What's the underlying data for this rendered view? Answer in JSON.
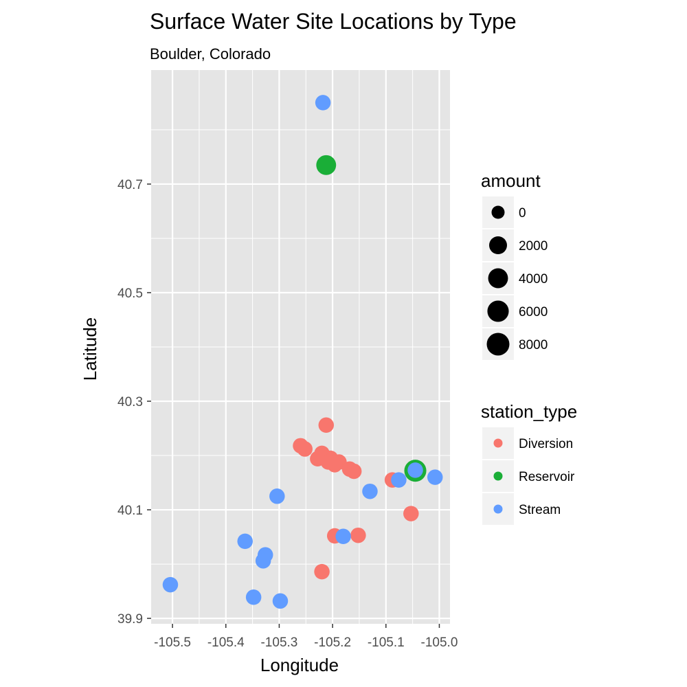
{
  "chart_data": {
    "type": "scatter",
    "title": "Surface Water Site Locations by Type",
    "subtitle": "Boulder, Colorado",
    "xlabel": "Longitude",
    "ylabel": "Latitude",
    "xlim": [
      -105.54,
      -104.98
    ],
    "ylim": [
      39.89,
      40.91
    ],
    "x_ticks": [
      -105.5,
      -105.4,
      -105.3,
      -105.2,
      -105.1,
      -105.0
    ],
    "x_tick_labels": [
      "-105.5",
      "-105.4",
      "-105.3",
      "-105.2",
      "-105.1",
      "-105.0"
    ],
    "y_ticks": [
      39.9,
      40.1,
      40.3,
      40.5,
      40.7
    ],
    "y_tick_labels": [
      "39.9",
      "40.1",
      "40.3",
      "40.5",
      "40.7"
    ],
    "grid": true,
    "colors": {
      "panel_bg": "#e5e5e5",
      "grid": "#ffffff",
      "legend_key_bg": "#f2f2f2",
      "Diversion": "#f8766d",
      "Reservoir": "#1aae37",
      "Stream": "#619cff"
    },
    "legend_amount": {
      "title": "amount",
      "placement": "right",
      "entries": [
        {
          "label": "0",
          "value": 0
        },
        {
          "label": "2000",
          "value": 2000
        },
        {
          "label": "4000",
          "value": 4000
        },
        {
          "label": "6000",
          "value": 6000
        },
        {
          "label": "8000",
          "value": 8000
        }
      ]
    },
    "legend_type": {
      "title": "station_type",
      "placement": "right",
      "entries": [
        "Diversion",
        "Reservoir",
        "Stream"
      ]
    },
    "series": [
      {
        "name": "Diversion",
        "points": [
          {
            "x": -105.212,
            "y": 40.256,
            "amount": 500
          },
          {
            "x": -105.26,
            "y": 40.218,
            "amount": 500
          },
          {
            "x": -105.252,
            "y": 40.212,
            "amount": 500
          },
          {
            "x": -105.22,
            "y": 40.204,
            "amount": 500
          },
          {
            "x": -105.212,
            "y": 40.196,
            "amount": 500
          },
          {
            "x": -105.204,
            "y": 40.195,
            "amount": 500
          },
          {
            "x": -105.228,
            "y": 40.194,
            "amount": 500
          },
          {
            "x": -105.188,
            "y": 40.188,
            "amount": 500
          },
          {
            "x": -105.208,
            "y": 40.188,
            "amount": 500
          },
          {
            "x": -105.196,
            "y": 40.183,
            "amount": 500
          },
          {
            "x": -105.168,
            "y": 40.175,
            "amount": 500
          },
          {
            "x": -105.16,
            "y": 40.171,
            "amount": 500
          },
          {
            "x": -105.088,
            "y": 40.155,
            "amount": 500
          },
          {
            "x": -105.053,
            "y": 40.093,
            "amount": 500
          },
          {
            "x": -105.196,
            "y": 40.052,
            "amount": 500
          },
          {
            "x": -105.152,
            "y": 40.053,
            "amount": 500
          },
          {
            "x": -105.22,
            "y": 39.986,
            "amount": 500
          }
        ]
      },
      {
        "name": "Reservoir",
        "points": [
          {
            "x": -105.212,
            "y": 40.735,
            "amount": 4000
          },
          {
            "x": -105.045,
            "y": 40.172,
            "amount": 7000
          }
        ]
      },
      {
        "name": "Stream",
        "points": [
          {
            "x": -105.218,
            "y": 40.85,
            "amount": 500
          },
          {
            "x": -105.045,
            "y": 40.173,
            "amount": 500
          },
          {
            "x": -105.008,
            "y": 40.16,
            "amount": 500
          },
          {
            "x": -105.076,
            "y": 40.155,
            "amount": 500
          },
          {
            "x": -105.13,
            "y": 40.134,
            "amount": 500
          },
          {
            "x": -105.304,
            "y": 40.125,
            "amount": 500
          },
          {
            "x": -105.18,
            "y": 40.051,
            "amount": 500
          },
          {
            "x": -105.364,
            "y": 40.042,
            "amount": 500
          },
          {
            "x": -105.326,
            "y": 40.017,
            "amount": 500
          },
          {
            "x": -105.33,
            "y": 40.006,
            "amount": 500
          },
          {
            "x": -105.504,
            "y": 39.962,
            "amount": 500
          },
          {
            "x": -105.348,
            "y": 39.939,
            "amount": 500
          },
          {
            "x": -105.298,
            "y": 39.932,
            "amount": 500
          }
        ]
      }
    ]
  }
}
